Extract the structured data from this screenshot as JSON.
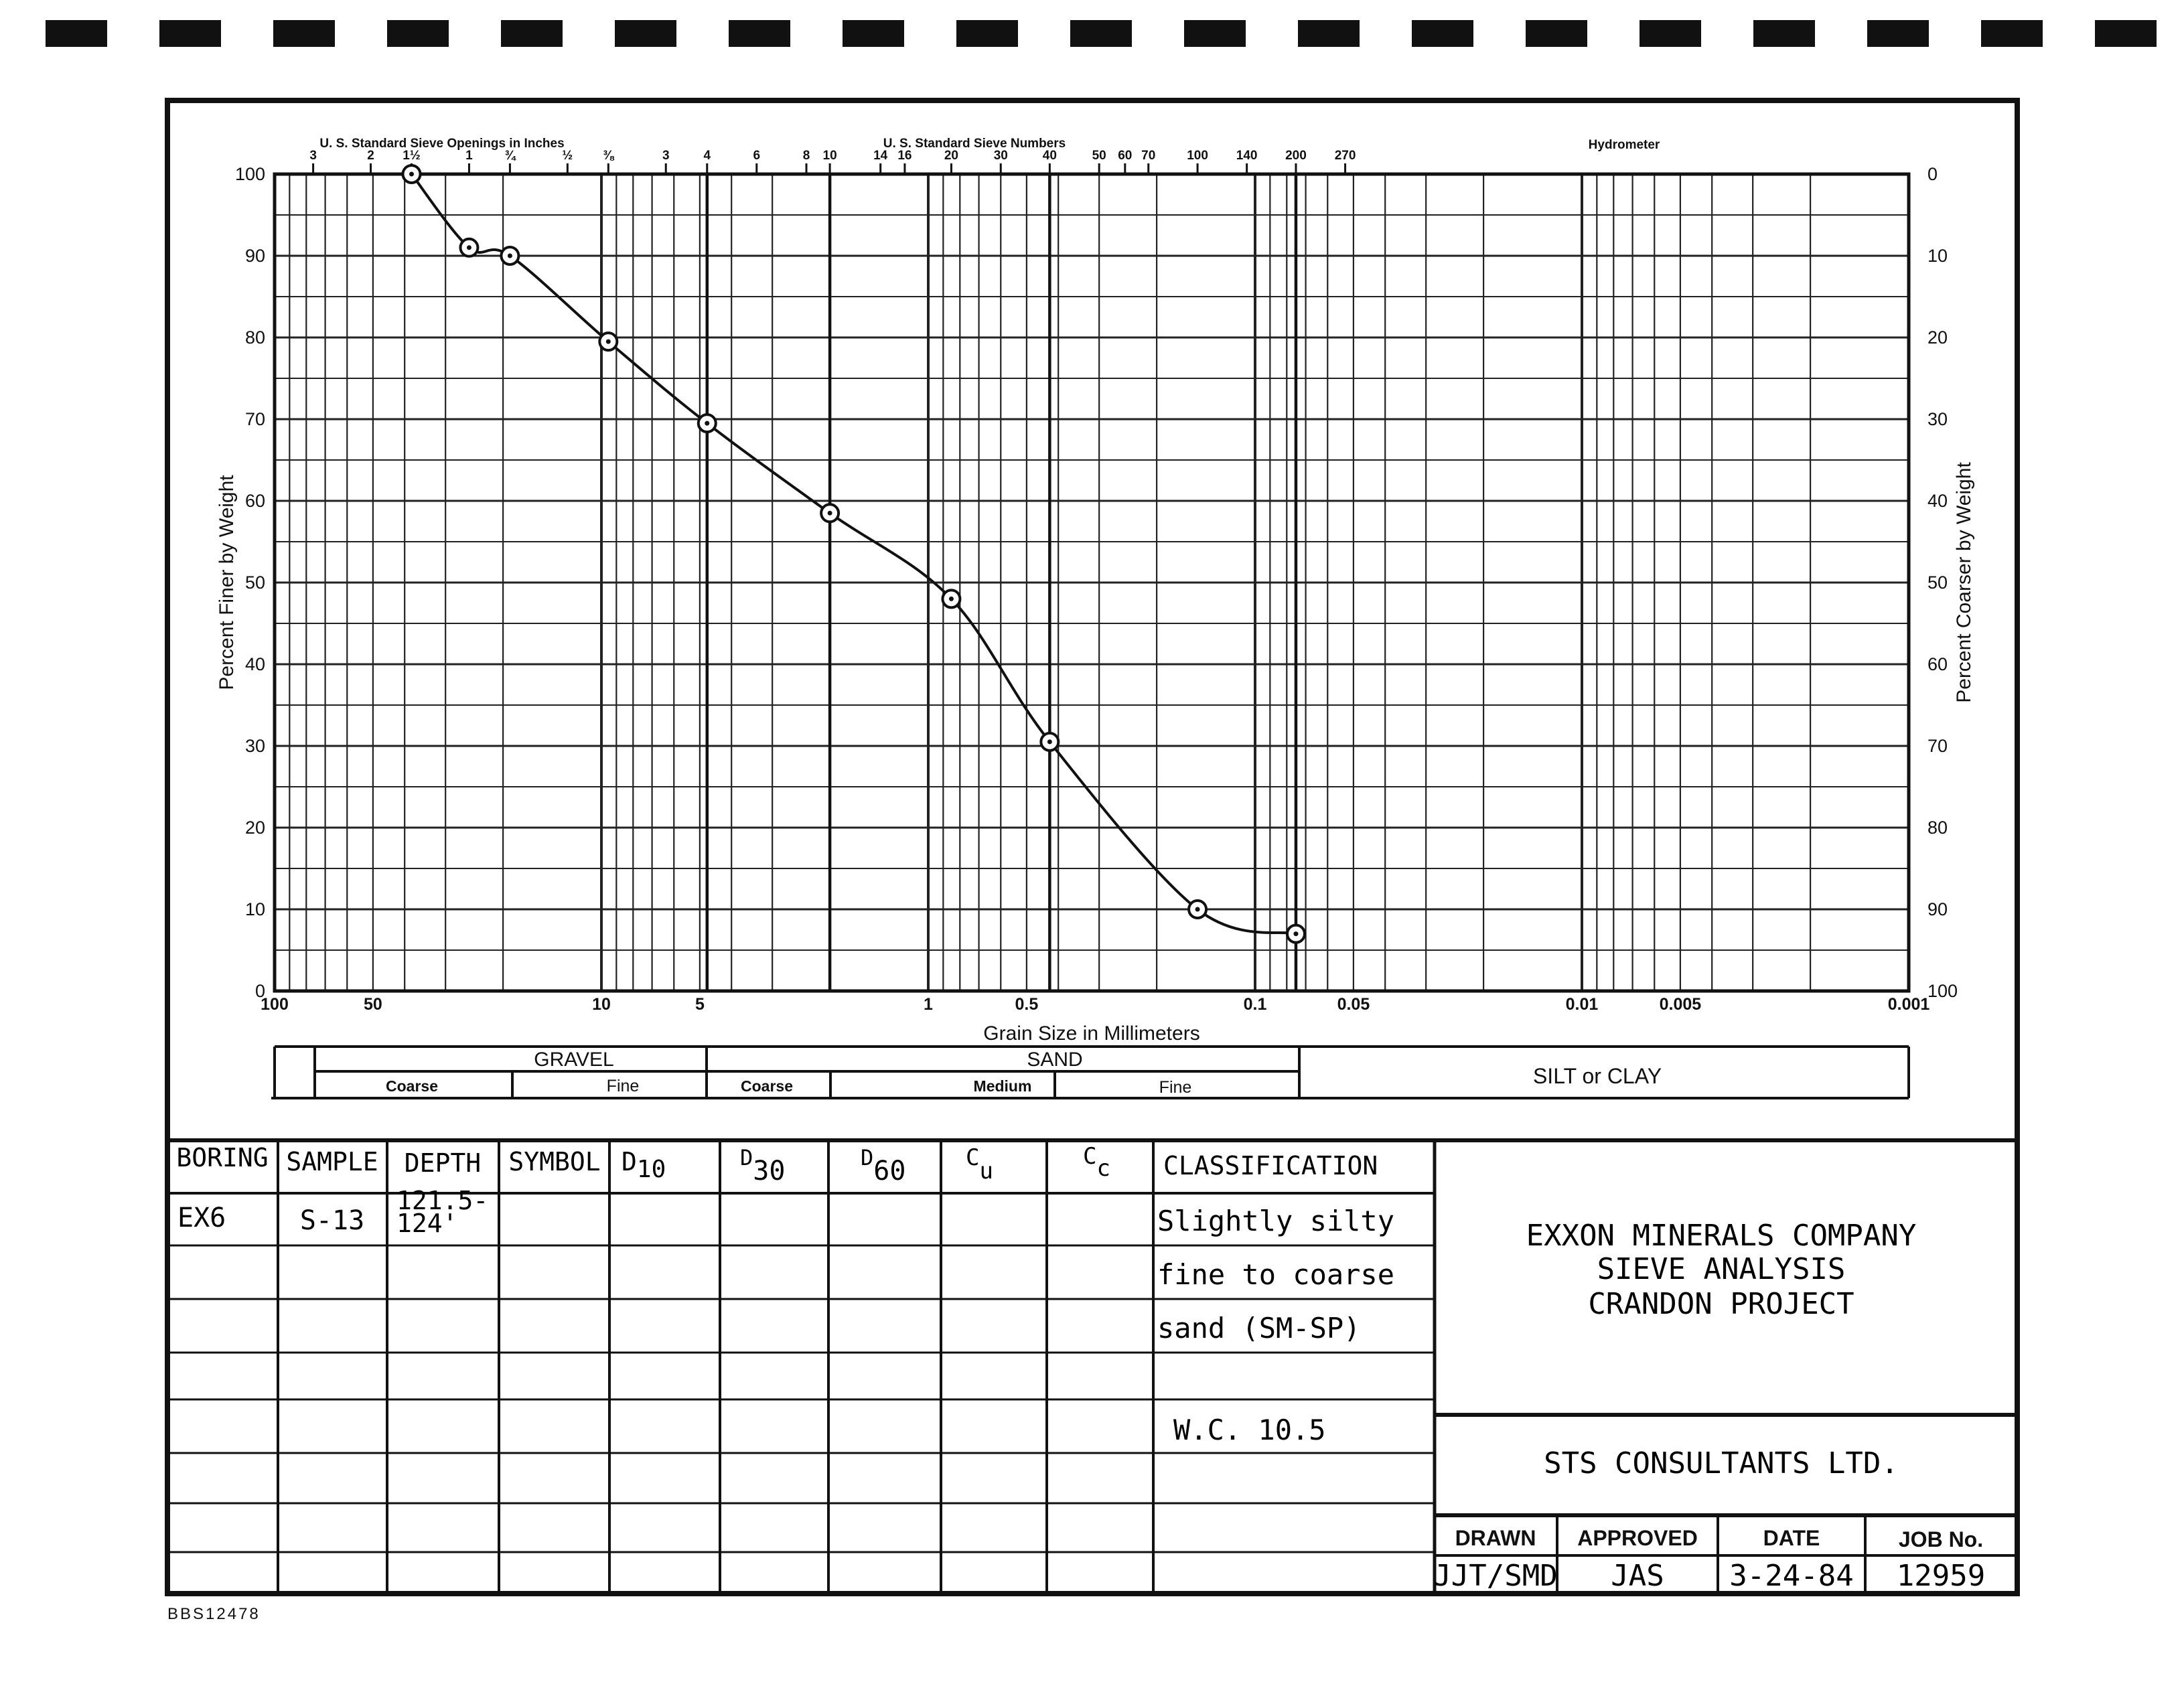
{
  "chart_data": {
    "type": "line",
    "xlabel": "Grain Size in Millimeters",
    "ylabel_left": "Percent Finer by Weight",
    "ylabel_right": "Percent Coarser by Weight",
    "x_scale": "log",
    "x_reversed": true,
    "xlim": [
      100,
      0.001
    ],
    "ylim": [
      0,
      100
    ],
    "grid": true,
    "x_ticks": [
      {
        "v": 100,
        "label": "100"
      },
      {
        "v": 50,
        "label": "50"
      },
      {
        "v": 10,
        "label": "10"
      },
      {
        "v": 5,
        "label": "5"
      },
      {
        "v": 1,
        "label": "1"
      },
      {
        "v": 0.5,
        "label": "0.5"
      },
      {
        "v": 0.1,
        "label": "0.1"
      },
      {
        "v": 0.05,
        "label": "0.05"
      },
      {
        "v": 0.01,
        "label": "0.01"
      },
      {
        "v": 0.005,
        "label": "0.005"
      },
      {
        "v": 0.001,
        "label": "0.001"
      }
    ],
    "y_ticks_left": [
      "0",
      "10",
      "20",
      "30",
      "40",
      "50",
      "60",
      "70",
      "80",
      "90",
      "100"
    ],
    "y_ticks_right": [
      "100",
      "90",
      "80",
      "70",
      "60",
      "50",
      "40",
      "30",
      "20",
      "10",
      "0"
    ],
    "top_axis": {
      "inches_title": "U. S. Standard Sieve Openings in Inches",
      "numbers_title": "U. S. Standard Sieve Numbers",
      "hydrometer_title": "Hydrometer",
      "inch_ticks": [
        {
          "v": 76.2,
          "label": "3"
        },
        {
          "v": 50.8,
          "label": "2"
        },
        {
          "v": 38.1,
          "label": "1½"
        },
        {
          "v": 25.4,
          "label": "1"
        },
        {
          "v": 19.05,
          "label": "¾"
        },
        {
          "v": 12.7,
          "label": "½"
        },
        {
          "v": 9.525,
          "label": "⅜"
        }
      ],
      "sieve_ticks": [
        {
          "v": 6.35,
          "label": "3"
        },
        {
          "v": 4.75,
          "label": "4"
        },
        {
          "v": 3.35,
          "label": "6"
        },
        {
          "v": 2.36,
          "label": "8"
        },
        {
          "v": 2.0,
          "label": "10"
        },
        {
          "v": 1.4,
          "label": "14"
        },
        {
          "v": 1.18,
          "label": "16"
        },
        {
          "v": 0.85,
          "label": "20"
        },
        {
          "v": 0.6,
          "label": "30"
        },
        {
          "v": 0.425,
          "label": "40"
        },
        {
          "v": 0.3,
          "label": "50"
        },
        {
          "v": 0.25,
          "label": "60"
        },
        {
          "v": 0.212,
          "label": "70"
        },
        {
          "v": 0.15,
          "label": "100"
        },
        {
          "v": 0.106,
          "label": "140"
        },
        {
          "v": 0.075,
          "label": "200"
        },
        {
          "v": 0.053,
          "label": "270"
        }
      ]
    },
    "series": [
      {
        "x": [
          38.1,
          25.4,
          19.05,
          9.525,
          4.75,
          2.0,
          0.85,
          0.425,
          0.15,
          0.075
        ],
        "y": [
          100,
          91,
          90,
          79.5,
          69.5,
          58.5,
          48,
          30.5,
          10,
          7
        ]
      }
    ]
  },
  "classification_bar": {
    "gravel": "GRAVEL",
    "sand": "SAND",
    "coarse": "Coarse",
    "fine": "Fine",
    "medium": "Medium",
    "silt_clay": "SILT or CLAY"
  },
  "table": {
    "headers": {
      "boring": "BORING",
      "sample": "SAMPLE",
      "depth": "DEPTH",
      "symbol": "SYMBOL",
      "d10_main": "D",
      "d10_sub": "10",
      "d30_main": "D",
      "d30_sub": "30",
      "d60_main": "D",
      "d60_sub": "60",
      "cu_main": "C",
      "cu_sub": "u",
      "cc_main": "C",
      "cc_sub": "c",
      "classification": "CLASSIFICATION"
    },
    "row": {
      "boring": "EX6",
      "sample": "S-13",
      "depth_line1": "121.5-",
      "depth_line2": "124'",
      "class_line1": "Slightly silty",
      "class_line2": "fine to coarse",
      "class_line3": "sand (SM-SP)",
      "note": "W.C. 10.5"
    }
  },
  "title_block": {
    "company": "EXXON MINERALS COMPANY",
    "title": "SIEVE ANALYSIS",
    "project": "CRANDON PROJECT",
    "consultant": "STS CONSULTANTS LTD.",
    "drawn_label": "DRAWN",
    "approved_label": "APPROVED",
    "date_label": "DATE",
    "job_label": "JOB No.",
    "drawn": "JJT/SMD",
    "approved": "JAS",
    "date": "3-24-84",
    "job": "12959"
  },
  "footer_code": "BBS12478"
}
